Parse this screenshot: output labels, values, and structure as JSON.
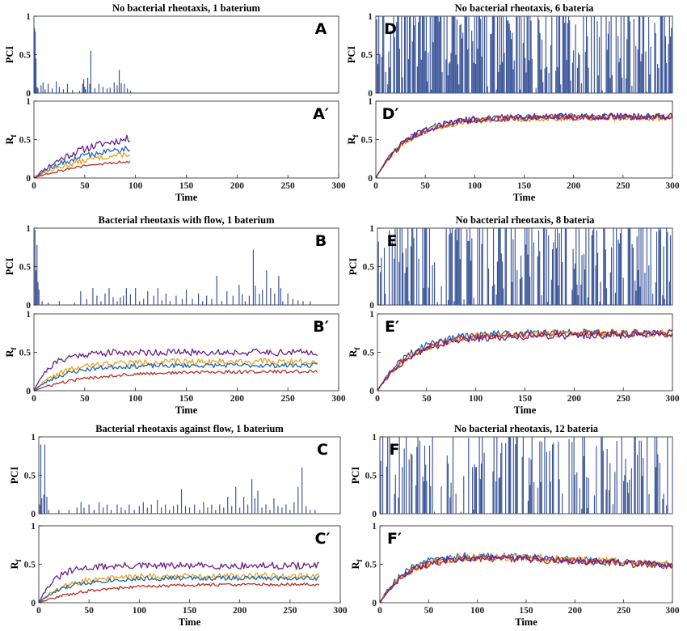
{
  "chart_data": [
    {
      "id": "A",
      "type": "bar",
      "title": "No bacterial rheotaxis, 1 baterium",
      "panel_label": "A",
      "ylabel": "PCI",
      "xlim": [
        0,
        300
      ],
      "ylim": [
        0,
        1
      ],
      "yticks": [
        "0",
        "0.5",
        "1"
      ],
      "color": "#3b5598",
      "x_end": 97,
      "spikes": [
        [
          0.5,
          0.85
        ],
        [
          1.2,
          0.8
        ],
        [
          2.0,
          0.45
        ],
        [
          3.0,
          0.08
        ],
        [
          4.0,
          0.06
        ],
        [
          7,
          0.1
        ],
        [
          9,
          0.14
        ],
        [
          11,
          0.05
        ],
        [
          14,
          0.12
        ],
        [
          18,
          0.06
        ],
        [
          22,
          0.15
        ],
        [
          25,
          0.08
        ],
        [
          29,
          0.05
        ],
        [
          33,
          0.12
        ],
        [
          38,
          0.04
        ],
        [
          45,
          0.03
        ],
        [
          48,
          0.12
        ],
        [
          49,
          0.18
        ],
        [
          50,
          0.08
        ],
        [
          51,
          0.05
        ],
        [
          53,
          0.2
        ],
        [
          55,
          0.12
        ],
        [
          56,
          0.55
        ],
        [
          60,
          0.06
        ],
        [
          64,
          0.12
        ],
        [
          68,
          0.08
        ],
        [
          72,
          0.06
        ],
        [
          75,
          0.07
        ],
        [
          79,
          0.14
        ],
        [
          82,
          0.1
        ],
        [
          84,
          0.3
        ],
        [
          86,
          0.13
        ],
        [
          89,
          0.12
        ],
        [
          92,
          0.06
        ],
        [
          95,
          0.03
        ]
      ]
    },
    {
      "id": "A2",
      "type": "line",
      "panel_label": "A′",
      "ylabel": "R",
      "ylabel_sub": "f",
      "xlabel": "Time",
      "xlim": [
        0,
        300
      ],
      "ylim": [
        0,
        1
      ],
      "xticks": [
        "0",
        "50",
        "100",
        "150",
        "200",
        "250",
        "300"
      ],
      "yticks": [
        "0",
        "0.5",
        "1"
      ],
      "series": [
        {
          "color": "#6a1f8c",
          "x_end": 95,
          "plateau": 0.6,
          "rate": 0.02,
          "slope": 0,
          "noise": 0.05,
          "seed": 11
        },
        {
          "color": "#1f66b5",
          "x_end": 95,
          "plateau": 0.45,
          "rate": 0.02,
          "slope": 0,
          "noise": 0.045,
          "seed": 12
        },
        {
          "color": "#e3a227",
          "x_end": 95,
          "plateau": 0.38,
          "rate": 0.018,
          "slope": 0,
          "noise": 0.035,
          "seed": 13
        },
        {
          "color": "#b3322b",
          "x_end": 95,
          "plateau": 0.26,
          "rate": 0.018,
          "slope": 0,
          "noise": 0.02,
          "seed": 14
        }
      ]
    },
    {
      "id": "B",
      "type": "bar",
      "title": "Bacterial rheotaxis with flow, 1 baterium",
      "panel_label": "B",
      "ylabel": "PCI",
      "xlim": [
        0,
        300
      ],
      "ylim": [
        0,
        1
      ],
      "yticks": [
        "0",
        "0.5",
        "1"
      ],
      "color": "#3b5598",
      "x_end": 280,
      "spikes": [
        [
          1,
          0.98
        ],
        [
          2,
          0.45
        ],
        [
          3,
          0.78
        ],
        [
          4,
          0.3
        ],
        [
          5,
          0.2
        ],
        [
          8,
          0.05
        ],
        [
          14,
          0.03
        ],
        [
          25,
          0.05
        ],
        [
          40,
          0.03
        ],
        [
          46,
          0.18
        ],
        [
          52,
          0.08
        ],
        [
          58,
          0.22
        ],
        [
          62,
          0.12
        ],
        [
          66,
          0.05
        ],
        [
          70,
          0.15
        ],
        [
          74,
          0.22
        ],
        [
          78,
          0.1
        ],
        [
          82,
          0.05
        ],
        [
          85,
          0.1
        ],
        [
          88,
          0.12
        ],
        [
          91,
          0.22
        ],
        [
          95,
          0.14
        ],
        [
          100,
          0.22
        ],
        [
          104,
          0.05
        ],
        [
          108,
          0.08
        ],
        [
          112,
          0.18
        ],
        [
          118,
          0.12
        ],
        [
          122,
          0.22
        ],
        [
          126,
          0.06
        ],
        [
          130,
          0.15
        ],
        [
          134,
          0.05
        ],
        [
          140,
          0.12
        ],
        [
          146,
          0.08
        ],
        [
          150,
          0.2
        ],
        [
          156,
          0.08
        ],
        [
          162,
          0.15
        ],
        [
          166,
          0.05
        ],
        [
          170,
          0.12
        ],
        [
          175,
          0.08
        ],
        [
          180,
          0.38
        ],
        [
          185,
          0.05
        ],
        [
          190,
          0.18
        ],
        [
          196,
          0.12
        ],
        [
          202,
          0.26
        ],
        [
          205,
          0.14
        ],
        [
          208,
          0.05
        ],
        [
          212,
          0.12
        ],
        [
          216,
          0.72
        ],
        [
          218,
          0.25
        ],
        [
          222,
          0.15
        ],
        [
          225,
          0.2
        ],
        [
          229,
          0.45
        ],
        [
          233,
          0.22
        ],
        [
          237,
          0.15
        ],
        [
          241,
          0.38
        ],
        [
          243,
          0.22
        ],
        [
          245,
          0.05
        ],
        [
          250,
          0.15
        ],
        [
          255,
          0.08
        ],
        [
          260,
          0.06
        ],
        [
          265,
          0.05
        ],
        [
          272,
          0.05
        ]
      ]
    },
    {
      "id": "B2",
      "type": "line",
      "panel_label": "B′",
      "ylabel": "R",
      "ylabel_sub": "f",
      "xlabel": "Time",
      "xlim": [
        0,
        300
      ],
      "ylim": [
        0,
        1
      ],
      "xticks": [
        "0",
        "50",
        "100",
        "150",
        "200",
        "250",
        "300"
      ],
      "yticks": [
        "0",
        "0.5",
        "1"
      ],
      "series": [
        {
          "color": "#6a1f8c",
          "x_end": 280,
          "plateau": 0.5,
          "rate": 0.06,
          "slope": 0,
          "noise": 0.045,
          "seed": 21
        },
        {
          "color": "#e3a227",
          "x_end": 280,
          "plateau": 0.38,
          "rate": 0.035,
          "slope": 0,
          "noise": 0.04,
          "seed": 22
        },
        {
          "color": "#1f66b5",
          "x_end": 280,
          "plateau": 0.33,
          "rate": 0.035,
          "slope": 0,
          "noise": 0.03,
          "seed": 23
        },
        {
          "color": "#b3322b",
          "x_end": 280,
          "plateau": 0.25,
          "rate": 0.02,
          "slope": 0,
          "noise": 0.02,
          "seed": 24
        }
      ]
    },
    {
      "id": "C",
      "type": "bar",
      "title": "Bacterial rheotaxis against flow, 1 baterium",
      "panel_label": "C",
      "ylabel": "PCI",
      "xlim": [
        0,
        300
      ],
      "ylim": [
        0,
        1
      ],
      "yticks": [
        "0",
        "0.5",
        "1"
      ],
      "color": "#3b5598",
      "x_end": 280,
      "spikes": [
        [
          1,
          0.12
        ],
        [
          2,
          0.9
        ],
        [
          3,
          0.2
        ],
        [
          5,
          0.25
        ],
        [
          6,
          0.9
        ],
        [
          8,
          0.22
        ],
        [
          10,
          0.05
        ],
        [
          20,
          0.05
        ],
        [
          30,
          0.05
        ],
        [
          38,
          0.08
        ],
        [
          42,
          0.15
        ],
        [
          45,
          0.08
        ],
        [
          50,
          0.12
        ],
        [
          55,
          0.05
        ],
        [
          60,
          0.15
        ],
        [
          64,
          0.08
        ],
        [
          68,
          0.12
        ],
        [
          72,
          0.05
        ],
        [
          78,
          0.12
        ],
        [
          82,
          0.08
        ],
        [
          86,
          0.05
        ],
        [
          90,
          0.12
        ],
        [
          95,
          0.05
        ],
        [
          100,
          0.1
        ],
        [
          104,
          0.15
        ],
        [
          108,
          0.08
        ],
        [
          112,
          0.12
        ],
        [
          118,
          0.18
        ],
        [
          122,
          0.08
        ],
        [
          126,
          0.12
        ],
        [
          130,
          0.05
        ],
        [
          134,
          0.1
        ],
        [
          138,
          0.12
        ],
        [
          142,
          0.32
        ],
        [
          146,
          0.1
        ],
        [
          150,
          0.08
        ],
        [
          155,
          0.12
        ],
        [
          160,
          0.05
        ],
        [
          164,
          0.15
        ],
        [
          168,
          0.08
        ],
        [
          172,
          0.12
        ],
        [
          176,
          0.05
        ],
        [
          180,
          0.12
        ],
        [
          184,
          0.08
        ],
        [
          188,
          0.22
        ],
        [
          192,
          0.1
        ],
        [
          196,
          0.35
        ],
        [
          200,
          0.08
        ],
        [
          204,
          0.22
        ],
        [
          208,
          0.12
        ],
        [
          212,
          0.45
        ],
        [
          215,
          0.2
        ],
        [
          218,
          0.3
        ],
        [
          222,
          0.08
        ],
        [
          226,
          0.12
        ],
        [
          230,
          0.05
        ],
        [
          234,
          0.2
        ],
        [
          238,
          0.1
        ],
        [
          242,
          0.08
        ],
        [
          246,
          0.12
        ],
        [
          250,
          0.05
        ],
        [
          254,
          0.15
        ],
        [
          258,
          0.35
        ],
        [
          262,
          0.6
        ],
        [
          266,
          0.1
        ],
        [
          270,
          0.05
        ],
        [
          275,
          0.05
        ]
      ]
    },
    {
      "id": "C2",
      "type": "line",
      "panel_label": "C′",
      "ylabel": "R",
      "ylabel_sub": "f",
      "xlabel": "Time",
      "xlim": [
        0,
        300
      ],
      "ylim": [
        0,
        1
      ],
      "xticks": [
        "0",
        "50",
        "100",
        "150",
        "200",
        "250",
        "300"
      ],
      "yticks": [
        "0",
        "0.5",
        "1"
      ],
      "series": [
        {
          "color": "#6a1f8c",
          "x_end": 280,
          "plateau": 0.48,
          "rate": 0.06,
          "slope": 0,
          "noise": 0.045,
          "seed": 31
        },
        {
          "color": "#e3a227",
          "x_end": 280,
          "plateau": 0.35,
          "rate": 0.035,
          "slope": 0,
          "noise": 0.04,
          "seed": 32
        },
        {
          "color": "#1f66b5",
          "x_end": 280,
          "plateau": 0.32,
          "rate": 0.035,
          "slope": 0,
          "noise": 0.03,
          "seed": 33
        },
        {
          "color": "#b3322b",
          "x_end": 280,
          "plateau": 0.24,
          "rate": 0.02,
          "slope": 0,
          "noise": 0.02,
          "seed": 34
        }
      ]
    },
    {
      "id": "D",
      "type": "bar",
      "title": "No bacterial rheotaxis, 6 bateria",
      "panel_label": "D",
      "ylabel": "PCI",
      "xlim": [
        0,
        300
      ],
      "ylim": [
        0,
        1
      ],
      "yticks": [
        "0",
        "0.5",
        "1"
      ],
      "color": "#3b5598",
      "x_end": 300,
      "density": 0.78,
      "seed": 41
    },
    {
      "id": "D2",
      "type": "line",
      "panel_label": "D′",
      "ylabel": "R",
      "ylabel_sub": "f",
      "xlabel": "Time",
      "xlim": [
        0,
        300
      ],
      "ylim": [
        0,
        1
      ],
      "xticks": [
        "0",
        "50",
        "100",
        "150",
        "200",
        "250",
        "300"
      ],
      "yticks": [
        "0",
        "0.5",
        "1"
      ],
      "series": [
        {
          "color": "#1f66b5",
          "x_end": 300,
          "plateau": 0.8,
          "rate": 0.03,
          "slope": 0,
          "noise": 0.04,
          "seed": 42
        },
        {
          "color": "#e3a227",
          "x_end": 300,
          "plateau": 0.78,
          "rate": 0.03,
          "slope": 0,
          "noise": 0.04,
          "seed": 43
        },
        {
          "color": "#b3322b",
          "x_end": 300,
          "plateau": 0.79,
          "rate": 0.03,
          "slope": 0,
          "noise": 0.04,
          "seed": 44
        },
        {
          "color": "#6a1f8c",
          "x_end": 300,
          "plateau": 0.8,
          "rate": 0.03,
          "slope": 0,
          "noise": 0.045,
          "seed": 45
        }
      ]
    },
    {
      "id": "E",
      "type": "bar",
      "title": "No bacterial rheotaxis, 8 bateria",
      "panel_label": "E",
      "ylabel": "PCI",
      "xlim": [
        0,
        300
      ],
      "ylim": [
        0,
        1
      ],
      "yticks": [
        "0",
        "0.5",
        "1"
      ],
      "color": "#3b5598",
      "x_end": 300,
      "density": 0.55,
      "seed": 51
    },
    {
      "id": "E2",
      "type": "line",
      "panel_label": "E′",
      "ylabel": "R",
      "ylabel_sub": "f",
      "xlabel": "Time",
      "xlim": [
        0,
        300
      ],
      "ylim": [
        0,
        1
      ],
      "xticks": [
        "0",
        "50",
        "100",
        "150",
        "200",
        "250",
        "300"
      ],
      "yticks": [
        "0",
        "0.5",
        "1"
      ],
      "series": [
        {
          "color": "#1f66b5",
          "x_end": 300,
          "plateau": 0.76,
          "rate": 0.03,
          "slope": 0,
          "noise": 0.045,
          "seed": 52
        },
        {
          "color": "#e3a227",
          "x_end": 300,
          "plateau": 0.74,
          "rate": 0.028,
          "slope": 0,
          "noise": 0.045,
          "seed": 53
        },
        {
          "color": "#b3322b",
          "x_end": 300,
          "plateau": 0.75,
          "rate": 0.028,
          "slope": 0,
          "noise": 0.045,
          "seed": 54
        },
        {
          "color": "#6a1f8c",
          "x_end": 300,
          "plateau": 0.72,
          "rate": 0.028,
          "slope": 0,
          "noise": 0.045,
          "seed": 55
        }
      ]
    },
    {
      "id": "F",
      "type": "bar",
      "title": "No bacterial rheotaxis, 12 bateria",
      "panel_label": "F",
      "ylabel": "PCI",
      "xlim": [
        0,
        300
      ],
      "ylim": [
        0,
        1
      ],
      "yticks": [
        "0",
        "0.5",
        "1"
      ],
      "color": "#3b5598",
      "x_end": 300,
      "density": 0.45,
      "seed": 61
    },
    {
      "id": "F2",
      "type": "line",
      "panel_label": "F′",
      "ylabel": "R",
      "ylabel_sub": "f",
      "xlabel": "Time",
      "xlim": [
        0,
        300
      ],
      "ylim": [
        0,
        1
      ],
      "xticks": [
        "0",
        "50",
        "100",
        "150",
        "200",
        "250",
        "300"
      ],
      "yticks": [
        "0",
        "0.5",
        "1"
      ],
      "series": [
        {
          "color": "#1f66b5",
          "x_end": 300,
          "plateau": 0.7,
          "rate": 0.035,
          "slope": -0.0007,
          "noise": 0.045,
          "seed": 62
        },
        {
          "color": "#e3a227",
          "x_end": 300,
          "plateau": 0.68,
          "rate": 0.032,
          "slope": -0.0006,
          "noise": 0.05,
          "seed": 63
        },
        {
          "color": "#b3322b",
          "x_end": 300,
          "plateau": 0.66,
          "rate": 0.032,
          "slope": -0.0006,
          "noise": 0.045,
          "seed": 64
        },
        {
          "color": "#6a1f8c",
          "x_end": 300,
          "plateau": 0.67,
          "rate": 0.032,
          "slope": -0.0006,
          "noise": 0.045,
          "seed": 65
        }
      ]
    }
  ]
}
